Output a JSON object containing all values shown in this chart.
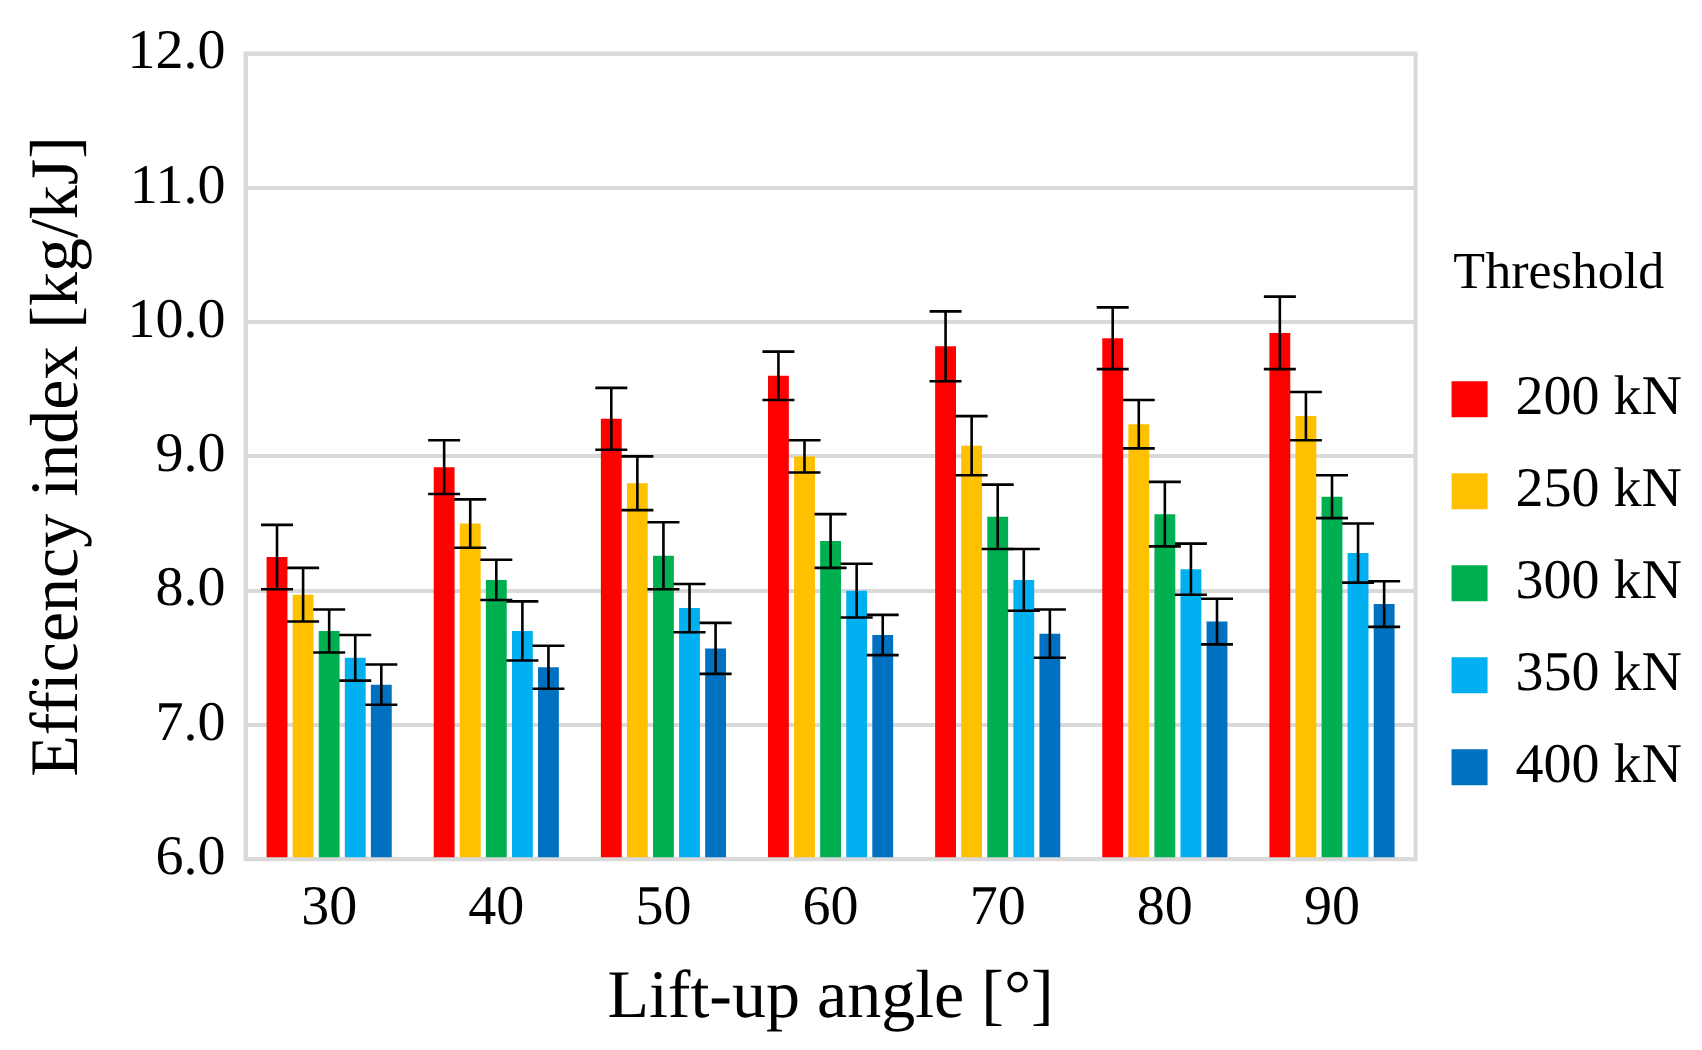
{
  "chart_data": {
    "type": "bar",
    "xlabel": "Lift-up angle [°]",
    "ylabel": "Efficency index [kg/kJ]",
    "legend_title": "Threshold",
    "legend": "right",
    "categories": [
      "30",
      "40",
      "50",
      "60",
      "70",
      "80",
      "90"
    ],
    "series": [
      {
        "name": "200 kN",
        "color": "#ff0000",
        "values": [
          8.25,
          8.92,
          9.28,
          9.6,
          9.82,
          9.88,
          9.92
        ],
        "errors": [
          0.24,
          0.2,
          0.23,
          0.18,
          0.26,
          0.23,
          0.27
        ]
      },
      {
        "name": "250 kN",
        "color": "#ffc000",
        "values": [
          7.97,
          8.5,
          8.8,
          9.0,
          9.08,
          9.24,
          9.3
        ],
        "errors": [
          0.2,
          0.18,
          0.2,
          0.12,
          0.22,
          0.18,
          0.18
        ]
      },
      {
        "name": "300 kN",
        "color": "#00b050",
        "values": [
          7.7,
          8.08,
          8.26,
          8.37,
          8.55,
          8.57,
          8.7
        ],
        "errors": [
          0.16,
          0.15,
          0.25,
          0.2,
          0.24,
          0.24,
          0.16
        ]
      },
      {
        "name": "350 kN",
        "color": "#00b0f0",
        "values": [
          7.5,
          7.7,
          7.87,
          8.0,
          8.08,
          8.16,
          8.28
        ],
        "errors": [
          0.17,
          0.22,
          0.18,
          0.2,
          0.23,
          0.19,
          0.22
        ]
      },
      {
        "name": "400 kN",
        "color": "#0070c0",
        "values": [
          7.3,
          7.43,
          7.57,
          7.67,
          7.68,
          7.77,
          7.9
        ],
        "errors": [
          0.15,
          0.16,
          0.19,
          0.15,
          0.18,
          0.17,
          0.17
        ]
      }
    ],
    "ylim": [
      6,
      12
    ],
    "yticks": [
      {
        "value": 6,
        "label": "6.0"
      },
      {
        "value": 7,
        "label": "7.0"
      },
      {
        "value": 8,
        "label": "8.0"
      },
      {
        "value": 9,
        "label": "9.0"
      },
      {
        "value": 10,
        "label": "10.0"
      },
      {
        "value": 11,
        "label": "11.0"
      },
      {
        "value": 12,
        "label": "12.0"
      }
    ],
    "grid": "y"
  }
}
